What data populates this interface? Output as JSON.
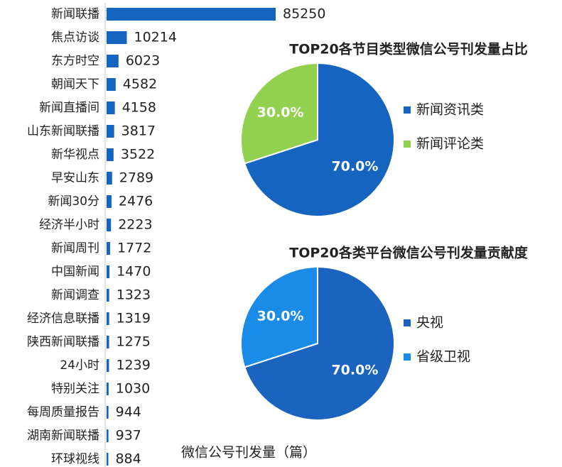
{
  "chart_data": [
    {
      "type": "bar",
      "orientation": "horizontal",
      "x_label": "微信公号刊发量（篇）",
      "color": "#1565c0",
      "categories": [
        "新闻联播",
        "焦点访谈",
        "东方时空",
        "朝闻天下",
        "新闻直播间",
        "山东新闻联播",
        "新华视点",
        "早安山东",
        "新闻30分",
        "经济半小时",
        "新闻周刊",
        "中国新闻",
        "新闻调查",
        "经济信息联播",
        "陕西新闻联播",
        "24小时",
        "特别关注",
        "每周质量报告",
        "湖南新闻联播",
        "环球视线"
      ],
      "values": [
        85250,
        10214,
        6023,
        4582,
        4158,
        3817,
        3522,
        2789,
        2476,
        2223,
        1772,
        1470,
        1323,
        1319,
        1275,
        1239,
        1030,
        944,
        937,
        884
      ]
    },
    {
      "type": "pie",
      "title": "TOP20各节目类型微信公号刊发量占比",
      "categories": [
        "新闻资讯类",
        "新闻评论类"
      ],
      "values": [
        70,
        30
      ],
      "value_labels": [
        "70.0%",
        "30.0%"
      ],
      "colors": [
        "#1565c0",
        "#92d050"
      ]
    },
    {
      "type": "pie",
      "title": "TOP20各类平台微信公号刊发量贡献度",
      "categories": [
        "央视",
        "省级卫视"
      ],
      "values": [
        70,
        30
      ],
      "value_labels": [
        "70.0%",
        "30.0%"
      ],
      "colors": [
        "#1a63be",
        "#1a8ce8"
      ]
    }
  ]
}
